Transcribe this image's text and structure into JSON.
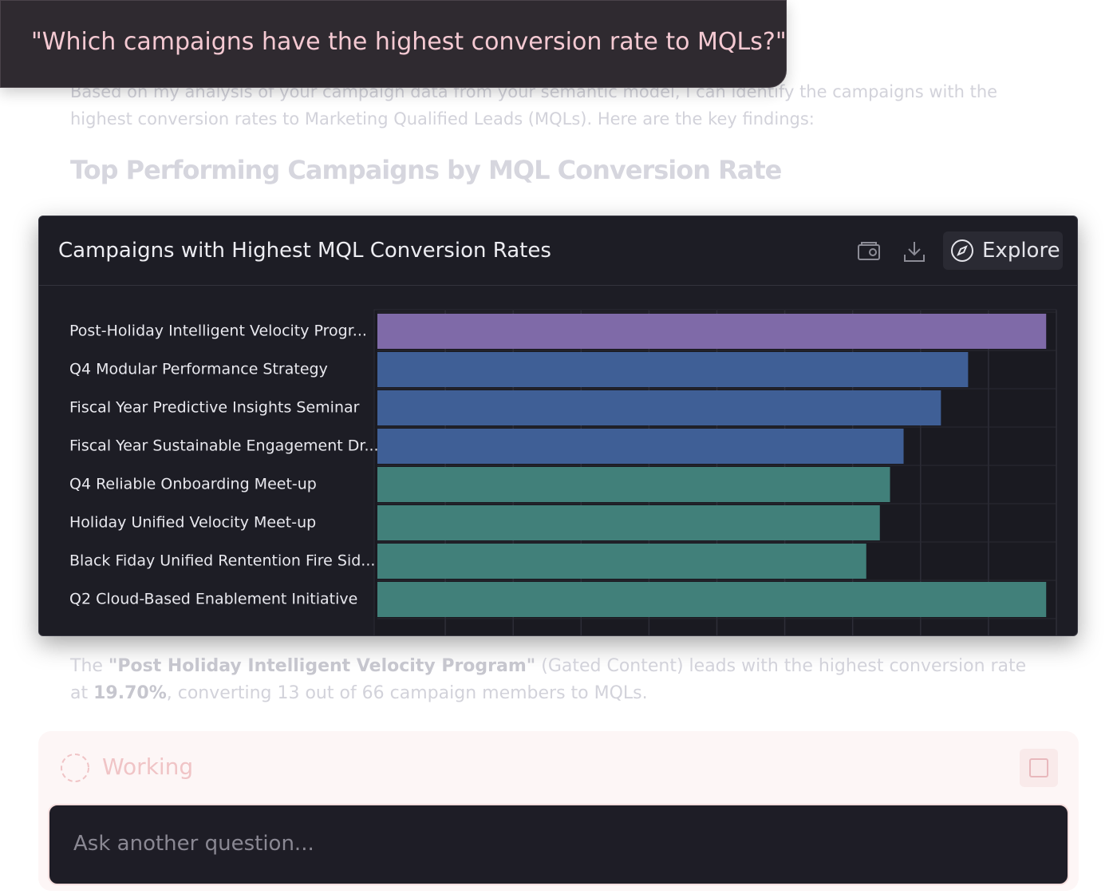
{
  "prompt": "\"Which campaigns have the highest conversion rate to MQLs?\"",
  "intro": "Based on my analysis of your campaign data from your semantic model, I can identify the campaigns with the highest conversion rates to Marketing Qualified Leads (MQLs). Here are the key findings:",
  "heading": "Top Performing Campaigns by MQL Conversion Rate",
  "chart_card": {
    "explore_button": "Explore"
  },
  "chart_data": {
    "type": "bar",
    "orientation": "horizontal",
    "title": "Campaigns with Highest MQL Conversion Rates",
    "categories": [
      "Post-Holiday Intelligent Velocity Progr...",
      "Q4 Modular Performance Strategy",
      "Fiscal Year Predictive Insights Seminar",
      "Fiscal Year Sustainable Engagement Dr...",
      "Q4 Reliable Onboarding Meet-up",
      "Holiday Unified Velocity Meet-up",
      "Black Fiday Unified Rentention Fire Sid...",
      "Q2 Cloud-Based Enablement Initiative"
    ],
    "values": [
      19.7,
      17.4,
      16.6,
      15.5,
      15.1,
      14.8,
      14.4,
      19.7
    ],
    "colors": [
      "#7f6aa8",
      "#3f5f96",
      "#3f5f96",
      "#3f5f96",
      "#41807a",
      "#41807a",
      "#41807a",
      "#41807a"
    ],
    "xlim": [
      0,
      20
    ],
    "grid": true
  },
  "summary": {
    "parts": [
      "The ",
      "\"Post Holiday Intelligent Velocity Program\"",
      " (Gated Content) leads with the highest conversion rate at ",
      "19.70%",
      ", converting 13 out of 66 campaign members to MQLs."
    ]
  },
  "status": "Working",
  "input_placeholder": "Ask another question..."
}
